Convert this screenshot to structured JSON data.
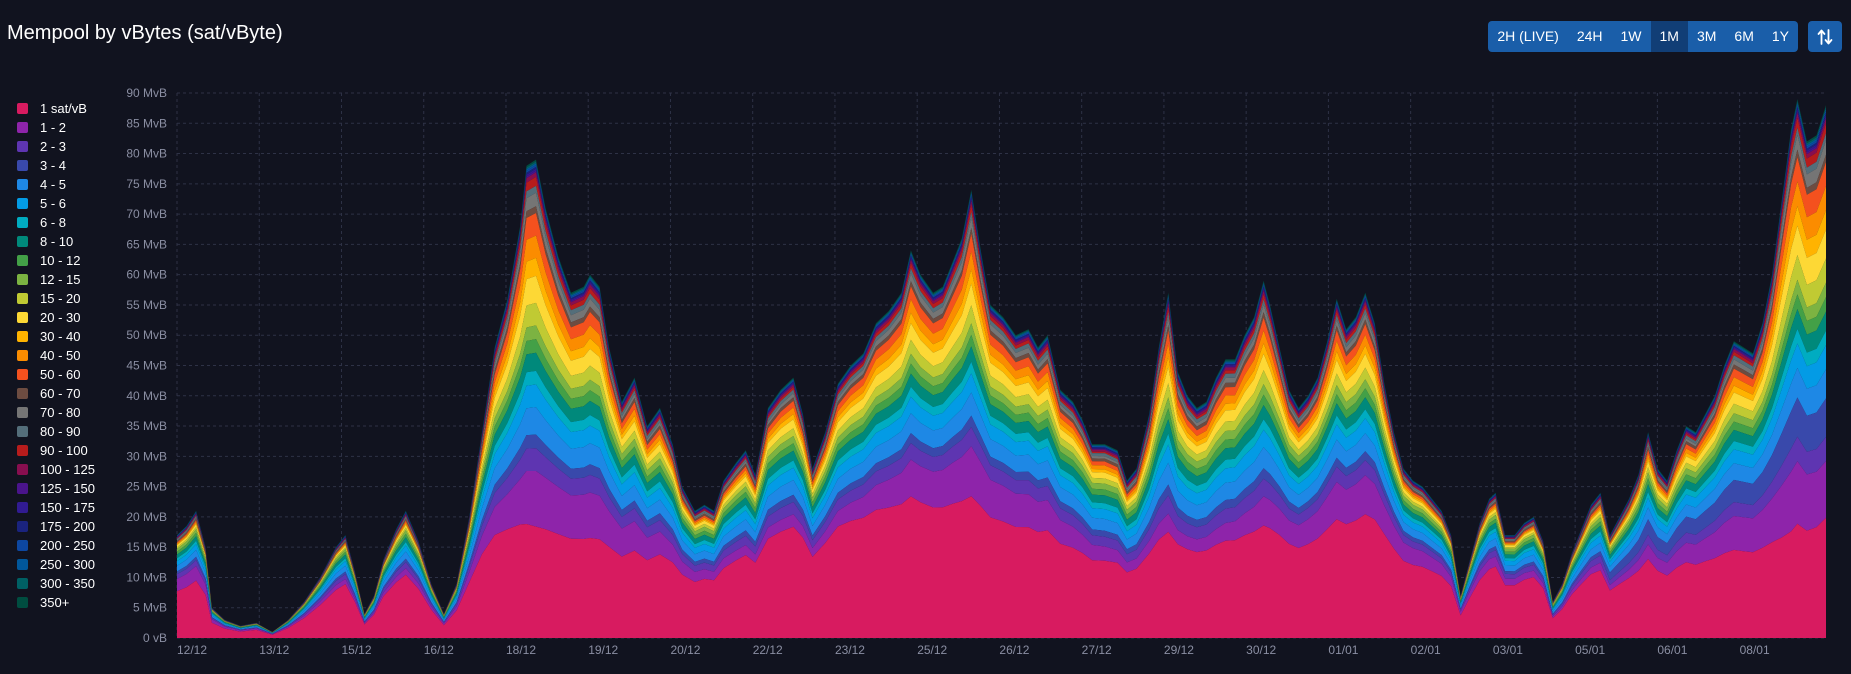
{
  "header": {
    "title": "Mempool by vBytes (sat/vByte)",
    "ranges": [
      "2H (LIVE)",
      "24H",
      "1W",
      "1M",
      "3M",
      "6M",
      "1Y"
    ],
    "active_range": "1M",
    "swap_icon": "swap-vertical-icon"
  },
  "chart_data": {
    "type": "area",
    "stacked": true,
    "title": "Mempool by vBytes (sat/vByte)",
    "ylabel": "",
    "xlabel": "",
    "y_ticks": [
      "0 vB",
      "5 MvB",
      "10 MvB",
      "15 MvB",
      "20 MvB",
      "25 MvB",
      "30 MvB",
      "35 MvB",
      "40 MvB",
      "45 MvB",
      "50 MvB",
      "55 MvB",
      "60 MvB",
      "65 MvB",
      "70 MvB",
      "75 MvB",
      "80 MvB",
      "85 MvB",
      "90 MvB"
    ],
    "ylim": [
      0,
      90
    ],
    "x_ticks": [
      "12/12",
      "13/12",
      "15/12",
      "16/12",
      "18/12",
      "19/12",
      "20/12",
      "22/12",
      "23/12",
      "25/12",
      "26/12",
      "27/12",
      "29/12",
      "30/12",
      "01/01",
      "02/01",
      "03/01",
      "05/01",
      "06/01",
      "08/01"
    ],
    "grid": true,
    "legend_position": "left",
    "series_meta": [
      {
        "name": "1 sat/vB",
        "color": "#d81b60"
      },
      {
        "name": "1 - 2",
        "color": "#8e24aa"
      },
      {
        "name": "2 - 3",
        "color": "#5e35b1"
      },
      {
        "name": "3 - 4",
        "color": "#3949ab"
      },
      {
        "name": "4 - 5",
        "color": "#1e88e5"
      },
      {
        "name": "5 - 6",
        "color": "#039be5"
      },
      {
        "name": "6 - 8",
        "color": "#00acc1"
      },
      {
        "name": "8 - 10",
        "color": "#00897b"
      },
      {
        "name": "10 - 12",
        "color": "#43a047"
      },
      {
        "name": "12 - 15",
        "color": "#7cb342"
      },
      {
        "name": "15 - 20",
        "color": "#c0ca33"
      },
      {
        "name": "20 - 30",
        "color": "#fdd835"
      },
      {
        "name": "30 - 40",
        "color": "#ffb300"
      },
      {
        "name": "40 - 50",
        "color": "#fb8c00"
      },
      {
        "name": "50 - 60",
        "color": "#f4511e"
      },
      {
        "name": "60 - 70",
        "color": "#6d4c41"
      },
      {
        "name": "70 - 80",
        "color": "#757575"
      },
      {
        "name": "80 - 90",
        "color": "#546e7a"
      },
      {
        "name": "90 - 100",
        "color": "#b71c1c"
      },
      {
        "name": "100 - 125",
        "color": "#880e4f"
      },
      {
        "name": "125 - 150",
        "color": "#4a148c"
      },
      {
        "name": "150 - 175",
        "color": "#311b92"
      },
      {
        "name": "175 - 200",
        "color": "#1a237e"
      },
      {
        "name": "200 - 250",
        "color": "#0d47a1"
      },
      {
        "name": "250 - 300",
        "color": "#01579b"
      },
      {
        "name": "300 - 350",
        "color": "#006064"
      },
      {
        "name": "350+",
        "color": "#004d40"
      }
    ],
    "total_mvb": [
      [
        0,
        17
      ],
      [
        0.3,
        18.5
      ],
      [
        0.6,
        21
      ],
      [
        0.9,
        15
      ],
      [
        1.1,
        5
      ],
      [
        1.5,
        3
      ],
      [
        2.0,
        2
      ],
      [
        2.5,
        2.5
      ],
      [
        3.0,
        1
      ],
      [
        3.5,
        3
      ],
      [
        4.0,
        6
      ],
      [
        4.5,
        10
      ],
      [
        5.0,
        15
      ],
      [
        5.3,
        17
      ],
      [
        5.6,
        11
      ],
      [
        5.9,
        4
      ],
      [
        6.2,
        7
      ],
      [
        6.5,
        13
      ],
      [
        6.9,
        18
      ],
      [
        7.2,
        21
      ],
      [
        7.6,
        16
      ],
      [
        8.0,
        9
      ],
      [
        8.4,
        4
      ],
      [
        8.8,
        9
      ],
      [
        9.2,
        20
      ],
      [
        9.6,
        34
      ],
      [
        10.0,
        48
      ],
      [
        10.4,
        56
      ],
      [
        10.8,
        68
      ],
      [
        11.0,
        78
      ],
      [
        11.3,
        79
      ],
      [
        11.6,
        71
      ],
      [
        12.0,
        63
      ],
      [
        12.4,
        57
      ],
      [
        12.8,
        58
      ],
      [
        13.0,
        60
      ],
      [
        13.3,
        58
      ],
      [
        13.6,
        48
      ],
      [
        14.0,
        39
      ],
      [
        14.4,
        43
      ],
      [
        14.8,
        35
      ],
      [
        15.2,
        38
      ],
      [
        15.6,
        32
      ],
      [
        15.9,
        25
      ],
      [
        16.3,
        21
      ],
      [
        16.6,
        22
      ],
      [
        16.9,
        21
      ],
      [
        17.2,
        26
      ],
      [
        17.6,
        29
      ],
      [
        17.9,
        31
      ],
      [
        18.2,
        27
      ],
      [
        18.6,
        38
      ],
      [
        19.0,
        41
      ],
      [
        19.4,
        43
      ],
      [
        19.7,
        37
      ],
      [
        20.0,
        28
      ],
      [
        20.4,
        34
      ],
      [
        20.8,
        42
      ],
      [
        21.2,
        45
      ],
      [
        21.6,
        47
      ],
      [
        22.0,
        52
      ],
      [
        22.4,
        54
      ],
      [
        22.8,
        57
      ],
      [
        23.1,
        64
      ],
      [
        23.4,
        60
      ],
      [
        23.8,
        57
      ],
      [
        24.1,
        58
      ],
      [
        24.4,
        62
      ],
      [
        24.7,
        66
      ],
      [
        25.0,
        74
      ],
      [
        25.3,
        64
      ],
      [
        25.6,
        55
      ],
      [
        26.0,
        53
      ],
      [
        26.4,
        50
      ],
      [
        26.8,
        51
      ],
      [
        27.1,
        48
      ],
      [
        27.4,
        50
      ],
      [
        27.8,
        41
      ],
      [
        28.2,
        39
      ],
      [
        28.5,
        36
      ],
      [
        28.8,
        32
      ],
      [
        29.2,
        32
      ],
      [
        29.6,
        31
      ],
      [
        29.9,
        26
      ],
      [
        30.2,
        28
      ],
      [
        30.6,
        37
      ],
      [
        30.9,
        48
      ],
      [
        31.2,
        57
      ],
      [
        31.5,
        44
      ],
      [
        31.8,
        40
      ],
      [
        32.1,
        38
      ],
      [
        32.4,
        39
      ],
      [
        32.7,
        43
      ],
      [
        33.0,
        46
      ],
      [
        33.3,
        46
      ],
      [
        33.6,
        50
      ],
      [
        33.9,
        53
      ],
      [
        34.2,
        59
      ],
      [
        34.4,
        55
      ],
      [
        34.7,
        48
      ],
      [
        35.0,
        41
      ],
      [
        35.3,
        38
      ],
      [
        35.6,
        40
      ],
      [
        35.9,
        43
      ],
      [
        36.2,
        49
      ],
      [
        36.5,
        56
      ],
      [
        36.8,
        51
      ],
      [
        37.1,
        53
      ],
      [
        37.4,
        57
      ],
      [
        37.7,
        52
      ],
      [
        38.0,
        42
      ],
      [
        38.3,
        34
      ],
      [
        38.6,
        28
      ],
      [
        38.9,
        26
      ],
      [
        39.2,
        25
      ],
      [
        39.5,
        23
      ],
      [
        39.8,
        21
      ],
      [
        40.1,
        17
      ],
      [
        40.4,
        7
      ],
      [
        40.7,
        13
      ],
      [
        41.0,
        19
      ],
      [
        41.3,
        23
      ],
      [
        41.5,
        24
      ],
      [
        41.8,
        17
      ],
      [
        42.1,
        17
      ],
      [
        42.4,
        19
      ],
      [
        42.7,
        20
      ],
      [
        43.0,
        16
      ],
      [
        43.3,
        6
      ],
      [
        43.6,
        9
      ],
      [
        43.9,
        14
      ],
      [
        44.2,
        18
      ],
      [
        44.5,
        22
      ],
      [
        44.8,
        24
      ],
      [
        45.1,
        17
      ],
      [
        45.4,
        20
      ],
      [
        45.7,
        23
      ],
      [
        46.0,
        27
      ],
      [
        46.3,
        34
      ],
      [
        46.6,
        28
      ],
      [
        46.9,
        26
      ],
      [
        47.2,
        31
      ],
      [
        47.5,
        35
      ],
      [
        47.8,
        34
      ],
      [
        48.1,
        37
      ],
      [
        48.4,
        40
      ],
      [
        48.7,
        45
      ],
      [
        49.0,
        49
      ],
      [
        49.3,
        48
      ],
      [
        49.6,
        47
      ],
      [
        49.9,
        52
      ],
      [
        50.2,
        60
      ],
      [
        50.5,
        72
      ],
      [
        50.8,
        84
      ],
      [
        51.0,
        89
      ],
      [
        51.3,
        82
      ],
      [
        51.6,
        83
      ],
      [
        51.9,
        88
      ]
    ],
    "x_range": [
      0,
      51.9
    ]
  }
}
